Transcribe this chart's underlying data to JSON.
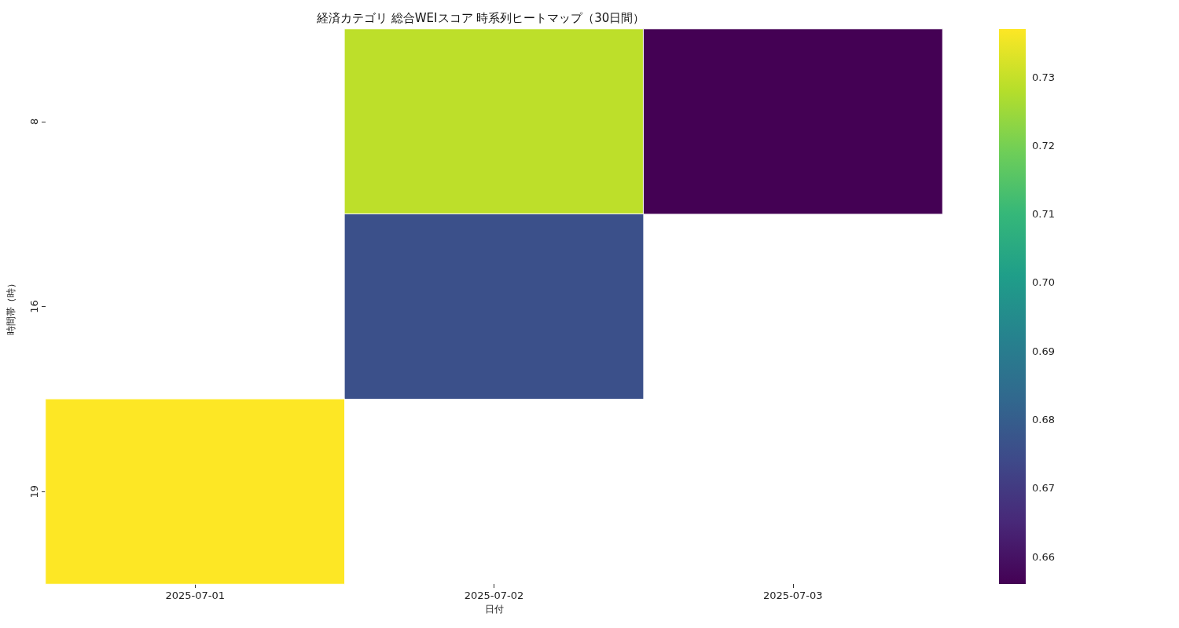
{
  "chart_data": {
    "type": "heatmap",
    "title": "経済カテゴリ 総合WEIスコア 時系列ヒートマップ（30日間）",
    "xlabel": "日付",
    "ylabel": "時間帯（時）",
    "categories": [
      "2025-07-01",
      "2025-07-02",
      "2025-07-03"
    ],
    "y_categories": [
      "8",
      "16",
      "19"
    ],
    "cells": [
      [
        null,
        0.729,
        0.656
      ],
      [
        null,
        0.676,
        null
      ],
      [
        0.737,
        null,
        null
      ]
    ],
    "clim": [
      0.656,
      0.737
    ],
    "cticks": [
      0.66,
      0.67,
      0.68,
      0.69,
      {
        "value": 0.7,
        "label": "0.70"
      },
      0.71,
      0.72,
      0.73
    ]
  }
}
